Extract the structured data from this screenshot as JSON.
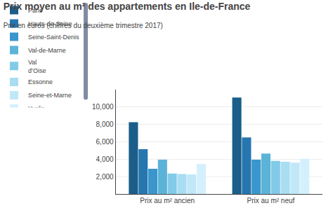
{
  "chart_data": {
    "type": "bar",
    "title": "Prix moyen au m² des appartements en Ile-de-France",
    "subtitle": "Prix en euros (chiffres du deuxième trimestre 2017)",
    "categories": [
      "Prix au m² ancien",
      "Prix au m² neuf"
    ],
    "series": [
      {
        "name": "Paris",
        "color": "#1b5e8a",
        "values": [
          8250,
          11100
        ]
      },
      {
        "name": "Hauts-de-Seine",
        "color": "#2676b0",
        "values": [
          5150,
          6500
        ]
      },
      {
        "name": "Seine-Saint-Denis",
        "color": "#3a96cc",
        "values": [
          2900,
          3950
        ]
      },
      {
        "name": "Val-de-Marne",
        "color": "#5cb3d8",
        "values": [
          3950,
          4650
        ]
      },
      {
        "name": "Val\nd’Oise",
        "color": "#82cbe8",
        "values": [
          2350,
          3800
        ]
      },
      {
        "name": "Essonne",
        "color": "#a8ddf2",
        "values": [
          2300,
          3700
        ]
      },
      {
        "name": "Seine-et-Marne",
        "color": "#c0e8f8",
        "values": [
          2250,
          3600
        ]
      },
      {
        "name": "Yvelin",
        "color": "#d4f0fd",
        "values": [
          3450,
          4050
        ]
      }
    ],
    "ylim": [
      0,
      12000
    ],
    "yticks": [
      {
        "value": 2000,
        "label": "2,000"
      },
      {
        "value": 4000,
        "label": "4,000"
      },
      {
        "value": 6000,
        "label": "6,000"
      },
      {
        "value": 8000,
        "label": "8,000"
      },
      {
        "value": 10000,
        "label": "10,000"
      }
    ],
    "grid": true,
    "legend": "top"
  }
}
